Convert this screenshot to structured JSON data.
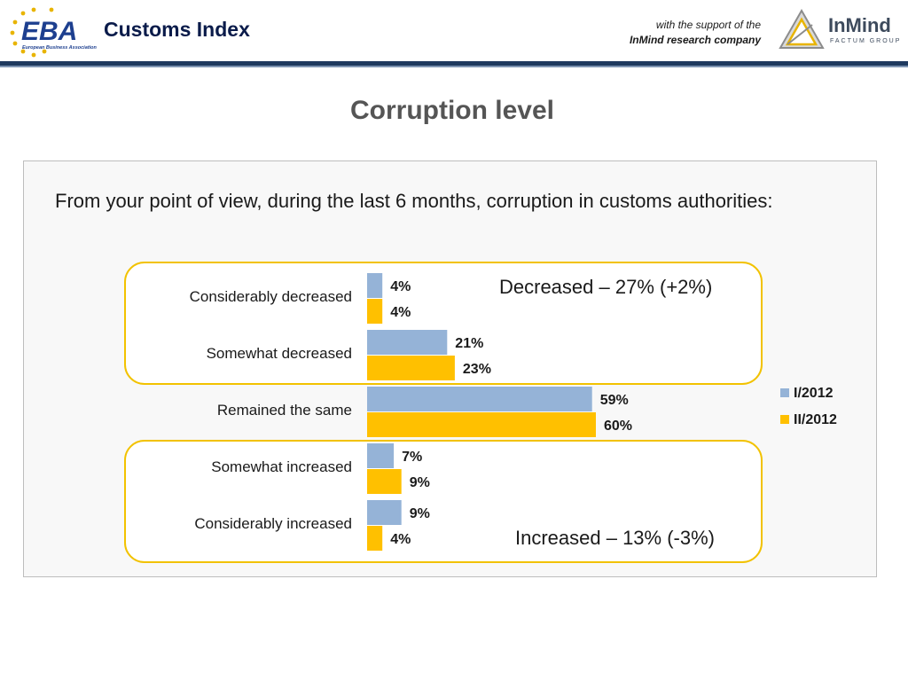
{
  "header": {
    "brand_title": "Customs Index",
    "eba_logo_text": "EBA",
    "eba_logo_subtitle": "European Business Association",
    "support_line1": "with the support of the",
    "support_line2": "InMind research company",
    "inmind_logo_text": "InMind",
    "inmind_logo_subtitle": "FACTUM GROUP"
  },
  "page_title": "Corruption level",
  "question": "From your point of view, during the last 6 months, corruption in customs authorities:",
  "summary": {
    "decreased": "Decreased – 27% (+2%)",
    "increased": "Increased – 13% (-3%)"
  },
  "colors": {
    "series1": "#95b3d7",
    "series2": "#ffc000",
    "highlight_border": "#f2c200",
    "header_rule": "#1f3a5f"
  },
  "chart_data": {
    "type": "bar",
    "orientation": "horizontal",
    "categories": [
      "Considerably decreased",
      "Somewhat decreased",
      "Remained the same",
      "Somewhat increased",
      "Considerably increased"
    ],
    "series": [
      {
        "name": "I/2012",
        "values": [
          4,
          21,
          59,
          7,
          9
        ],
        "labels": [
          "4%",
          "21%",
          "59%",
          "7%",
          "9%"
        ]
      },
      {
        "name": "II/2012",
        "values": [
          4,
          23,
          60,
          9,
          4
        ],
        "labels": [
          "4%",
          "23%",
          "60%",
          "9%",
          "4%"
        ]
      }
    ],
    "legend": [
      "I/2012",
      "II/2012"
    ],
    "legend_position": "right",
    "grid": false
  }
}
